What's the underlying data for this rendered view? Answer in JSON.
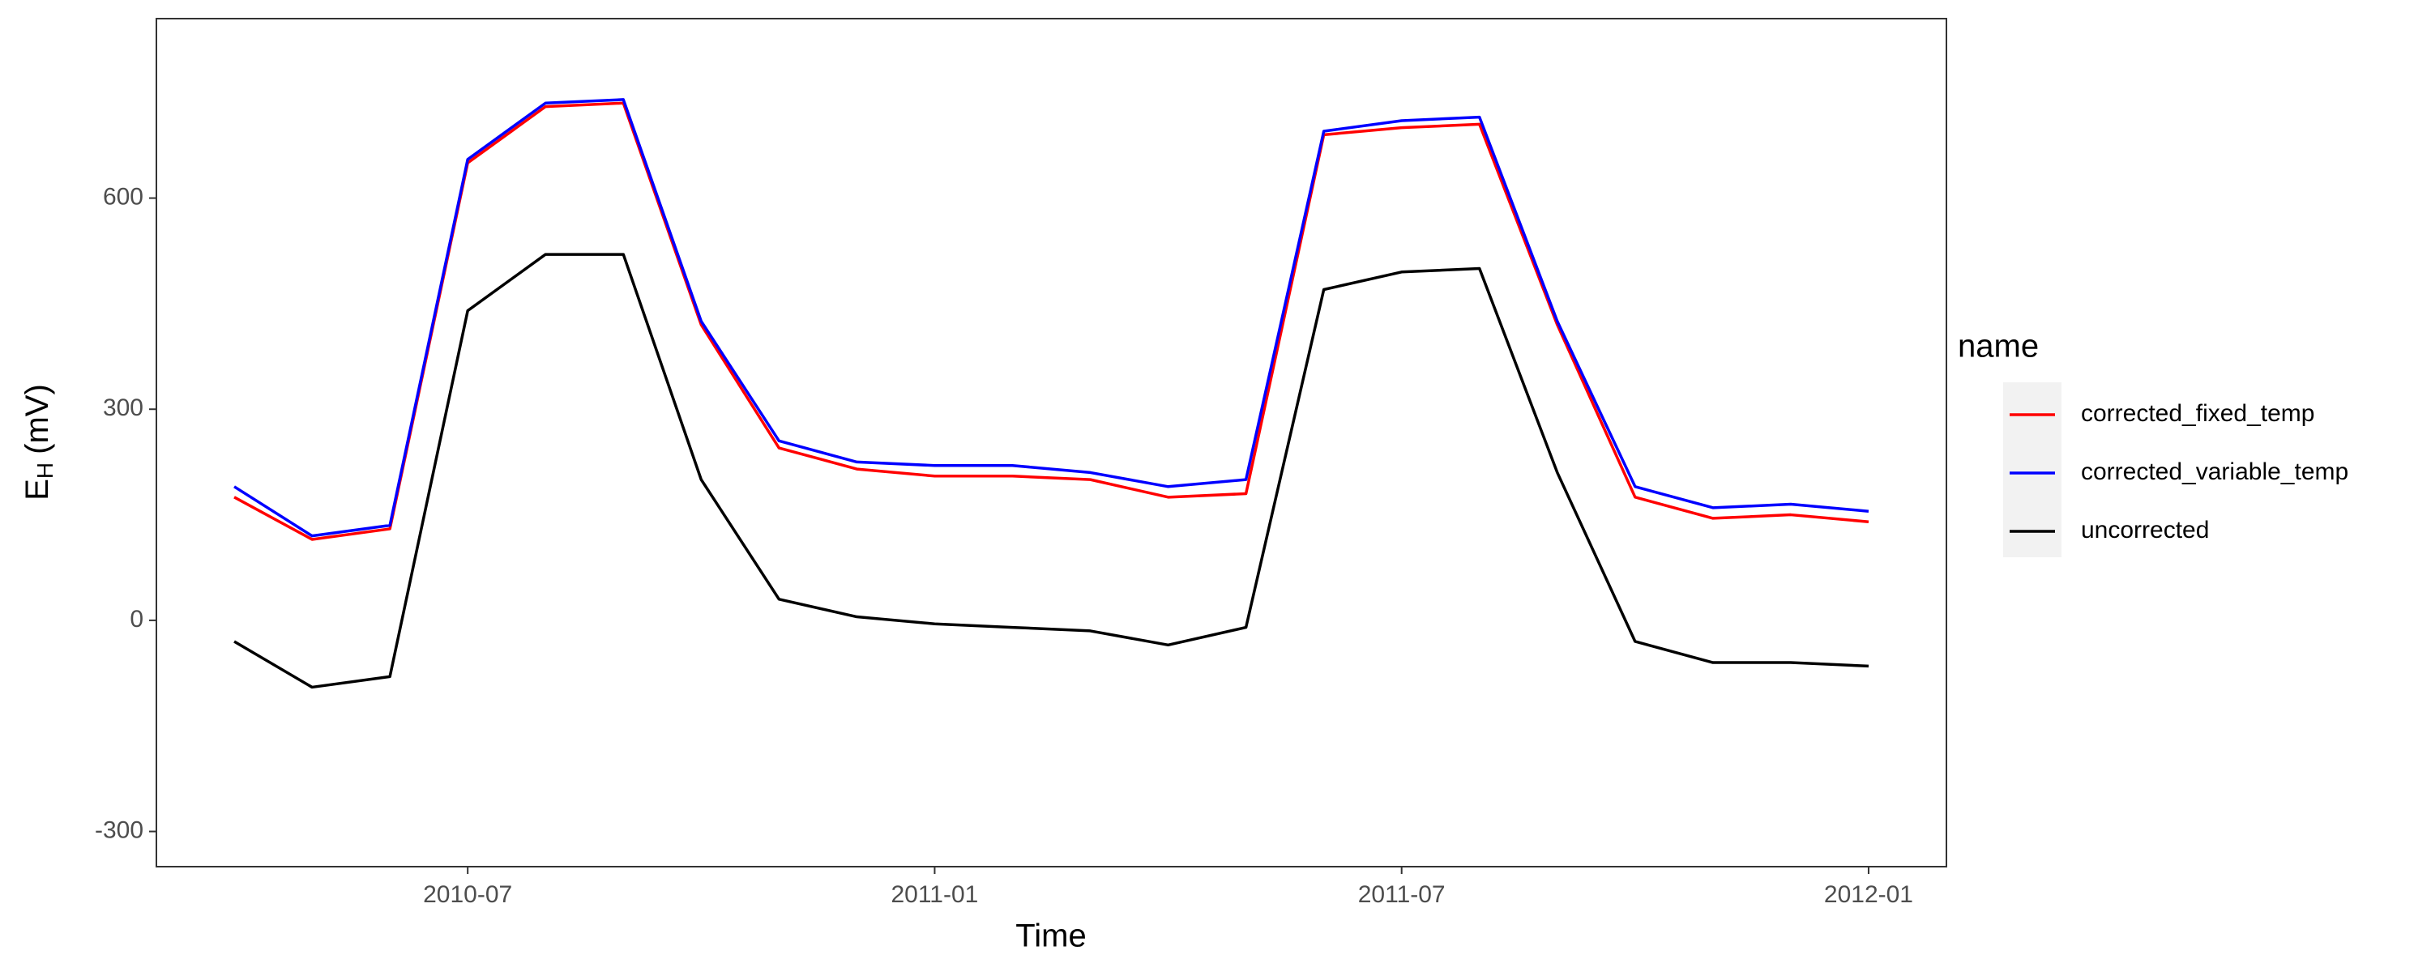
{
  "chart_data": {
    "type": "line",
    "x_label": "Time",
    "y_label": {
      "main": "E",
      "sub": "H",
      "unit": "(mV)"
    },
    "legend_title": "name",
    "x": [
      "2010-04",
      "2010-05",
      "2010-06",
      "2010-07",
      "2010-08",
      "2010-09",
      "2010-10",
      "2010-11",
      "2010-12",
      "2011-01",
      "2011-02",
      "2011-03",
      "2011-04",
      "2011-05",
      "2011-06",
      "2011-07",
      "2011-08",
      "2011-09",
      "2011-10",
      "2011-11",
      "2011-12",
      "2012-01"
    ],
    "series": [
      {
        "name": "corrected_fixed_temp",
        "color": "#ff0000",
        "values": [
          175,
          115,
          130,
          650,
          730,
          735,
          420,
          245,
          215,
          205,
          205,
          200,
          175,
          180,
          690,
          700,
          705,
          420,
          175,
          145,
          150,
          140
        ]
      },
      {
        "name": "corrected_variable_temp",
        "color": "#0000ff",
        "values": [
          190,
          120,
          135,
          655,
          735,
          740,
          425,
          255,
          225,
          220,
          220,
          210,
          190,
          200,
          695,
          710,
          715,
          425,
          190,
          160,
          165,
          155
        ]
      },
      {
        "name": "uncorrected",
        "color": "#000000",
        "values": [
          -30,
          -95,
          -80,
          440,
          520,
          520,
          200,
          30,
          5,
          -5,
          -10,
          -15,
          -35,
          -10,
          470,
          495,
          500,
          210,
          -30,
          -60,
          -60,
          -65
        ]
      }
    ],
    "xlim": [
      "2010-03",
      "2012-02"
    ],
    "xticks": [
      "2010-07",
      "2011-01",
      "2011-07",
      "2012-01"
    ],
    "ylim": [
      -350,
      855
    ],
    "yticks": [
      -300,
      0,
      300,
      600
    ],
    "legend_position": "right"
  }
}
